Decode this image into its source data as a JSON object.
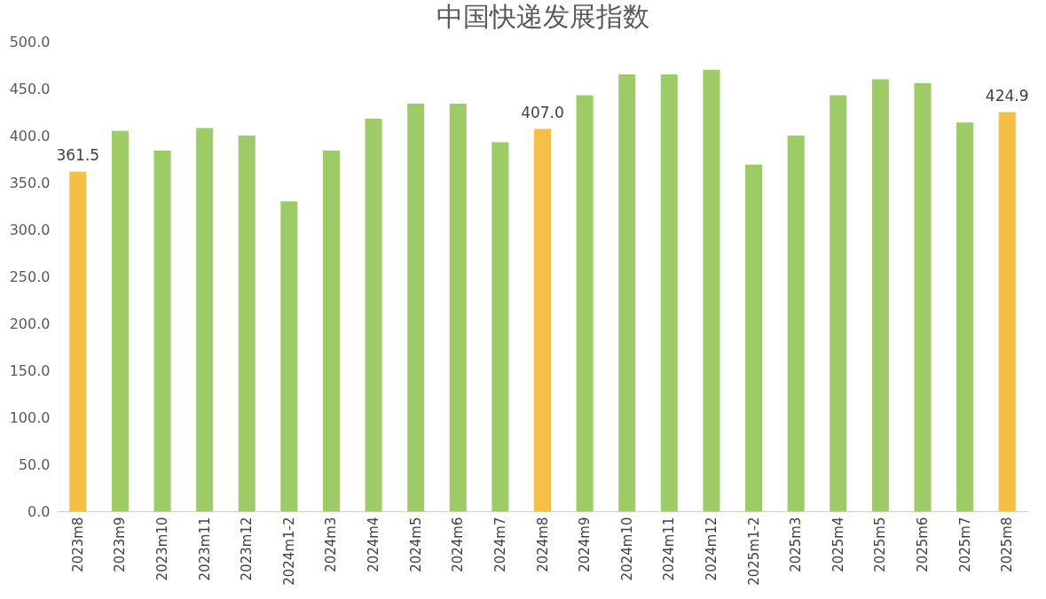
{
  "chart_data": {
    "type": "bar",
    "title": "中国快递发展指数",
    "categories": [
      "2023m8",
      "2023m9",
      "2023m10",
      "2023m11",
      "2023m12",
      "2024m1-2",
      "2024m3",
      "2024m4",
      "2024m5",
      "2024m6",
      "2024m7",
      "2024m8",
      "2024m9",
      "2024m10",
      "2024m11",
      "2024m12",
      "2025m1-2",
      "2025m3",
      "2025m4",
      "2025m5",
      "2025m6",
      "2025m7",
      "2025m8"
    ],
    "values": [
      361.5,
      405,
      384,
      408,
      400,
      330,
      384,
      418,
      434,
      434,
      393,
      407.0,
      443,
      465,
      465,
      470,
      369,
      400,
      443,
      460,
      456,
      414,
      424.9
    ],
    "colors": [
      "#f4bf45",
      "#9dcb66",
      "#9dcb66",
      "#9dcb66",
      "#9dcb66",
      "#9dcb66",
      "#9dcb66",
      "#9dcb66",
      "#9dcb66",
      "#9dcb66",
      "#9dcb66",
      "#f4bf45",
      "#9dcb66",
      "#9dcb66",
      "#9dcb66",
      "#9dcb66",
      "#9dcb66",
      "#9dcb66",
      "#9dcb66",
      "#9dcb66",
      "#9dcb66",
      "#9dcb66",
      "#f4bf45"
    ],
    "value_labels": [
      "361.5",
      null,
      null,
      null,
      null,
      null,
      null,
      null,
      null,
      null,
      null,
      "407.0",
      null,
      null,
      null,
      null,
      null,
      null,
      null,
      null,
      null,
      null,
      "424.9"
    ],
    "ylim": [
      0,
      500
    ],
    "yticks": [
      {
        "value": 0,
        "label": "0.0"
      },
      {
        "value": 50,
        "label": "50.0"
      },
      {
        "value": 100,
        "label": "100.0"
      },
      {
        "value": 150,
        "label": "150.0"
      },
      {
        "value": 200,
        "label": "200.0"
      },
      {
        "value": 250,
        "label": "250.0"
      },
      {
        "value": 300,
        "label": "300.0"
      },
      {
        "value": 350,
        "label": "350.0"
      },
      {
        "value": 400,
        "label": "400.0"
      },
      {
        "value": 450,
        "label": "450.0"
      },
      {
        "value": 500,
        "label": "500.0"
      }
    ],
    "grid": false
  }
}
